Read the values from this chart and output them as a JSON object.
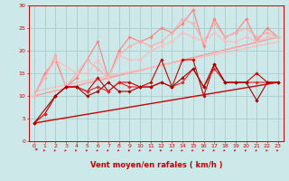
{
  "xlabel": "Vent moyen/en rafales ( km/h )",
  "background_color": "#cce8e8",
  "grid_color": "#aacccc",
  "xlim": [
    -0.5,
    23.5
  ],
  "ylim": [
    0,
    30
  ],
  "yticks": [
    0,
    5,
    10,
    15,
    20,
    25,
    30
  ],
  "xticks": [
    0,
    1,
    2,
    3,
    4,
    5,
    6,
    7,
    8,
    9,
    10,
    11,
    12,
    13,
    14,
    15,
    16,
    17,
    18,
    19,
    20,
    21,
    22,
    23
  ],
  "lines_light": [
    {
      "x": [
        0,
        1,
        2,
        3,
        4,
        5,
        6,
        7,
        8,
        9,
        10,
        11,
        12,
        13,
        14,
        15,
        16,
        17,
        18,
        19,
        20,
        21,
        22,
        23
      ],
      "y": [
        10,
        15,
        18,
        12,
        14,
        18,
        22,
        14,
        20,
        23,
        22,
        23,
        25,
        24,
        26,
        29,
        21,
        27,
        23,
        24,
        27,
        22,
        25,
        23
      ],
      "color": "#ff8080",
      "marker": "D",
      "markersize": 1.8,
      "linewidth": 0.8
    },
    {
      "x": [
        0,
        1,
        2,
        3,
        4,
        5,
        6,
        7,
        8,
        9,
        10,
        11,
        12,
        13,
        14,
        15,
        16,
        17,
        18,
        19,
        20,
        21,
        22,
        23
      ],
      "y": [
        10,
        14,
        19,
        12,
        15,
        18,
        16,
        14,
        19,
        21,
        22,
        21,
        22,
        24,
        27,
        26,
        22,
        26,
        23,
        24,
        25,
        23,
        24,
        23
      ],
      "color": "#ffaaaa",
      "marker": "D",
      "markersize": 1.8,
      "linewidth": 0.8
    },
    {
      "x": [
        0,
        2,
        4,
        5,
        6,
        7,
        8,
        9,
        10,
        11,
        12,
        13,
        14,
        15,
        16,
        17,
        18,
        19,
        20,
        21,
        22,
        23
      ],
      "y": [
        10,
        18,
        15,
        15,
        18,
        14,
        19,
        18,
        18,
        20,
        21,
        22,
        24,
        23,
        22,
        24,
        22,
        22,
        23,
        22,
        23,
        23
      ],
      "color": "#ffbbbb",
      "marker": "D",
      "markersize": 1.8,
      "linewidth": 0.8
    }
  ],
  "lines_trend_light": [
    {
      "x": [
        0,
        23
      ],
      "y": [
        10,
        23
      ],
      "color": "#ff9999",
      "linewidth": 1.0
    },
    {
      "x": [
        0,
        23
      ],
      "y": [
        11,
        22
      ],
      "color": "#ffbbbb",
      "linewidth": 1.0
    }
  ],
  "lines_dark": [
    {
      "x": [
        0,
        1,
        2,
        3,
        4,
        5,
        6,
        7,
        8,
        9,
        10,
        11,
        12,
        13,
        14,
        15,
        16,
        17,
        18,
        19,
        20,
        21,
        22,
        23
      ],
      "y": [
        4,
        6,
        10,
        12,
        12,
        11,
        14,
        11,
        13,
        13,
        12,
        13,
        18,
        12,
        18,
        18,
        10,
        17,
        13,
        13,
        13,
        15,
        13,
        13
      ],
      "color": "#cc0000",
      "marker": "D",
      "markersize": 1.8,
      "linewidth": 0.8
    },
    {
      "x": [
        0,
        1,
        2,
        3,
        4,
        5,
        6,
        7,
        8,
        9,
        10,
        11,
        12,
        13,
        14,
        15,
        16,
        17,
        18,
        19,
        20,
        21,
        22,
        23
      ],
      "y": [
        4,
        6,
        10,
        12,
        12,
        11,
        12,
        11,
        13,
        12,
        12,
        12,
        13,
        12,
        13,
        16,
        12,
        16,
        13,
        13,
        13,
        13,
        13,
        13
      ],
      "color": "#ee2222",
      "marker": "D",
      "markersize": 1.8,
      "linewidth": 0.8
    },
    {
      "x": [
        0,
        2,
        3,
        4,
        5,
        6,
        7,
        8,
        9,
        10,
        11,
        12,
        13,
        14,
        15,
        16,
        17,
        18,
        19,
        20,
        21,
        22,
        23
      ],
      "y": [
        4,
        10,
        12,
        12,
        10,
        11,
        13,
        11,
        11,
        12,
        12,
        13,
        12,
        14,
        16,
        12,
        17,
        13,
        13,
        13,
        9,
        13,
        13
      ],
      "color": "#aa0000",
      "marker": "D",
      "markersize": 1.8,
      "linewidth": 0.8
    }
  ],
  "lines_trend_dark": [
    {
      "x": [
        0,
        23
      ],
      "y": [
        4,
        13
      ],
      "color": "#cc0000",
      "linewidth": 1.0
    }
  ],
  "arrow_color": "#cc0000",
  "xlabel_color": "#cc0000",
  "tick_color": "#cc0000",
  "axis_color": "#cc0000",
  "xlabel_fontsize": 6.0,
  "tick_fontsize": 4.5
}
